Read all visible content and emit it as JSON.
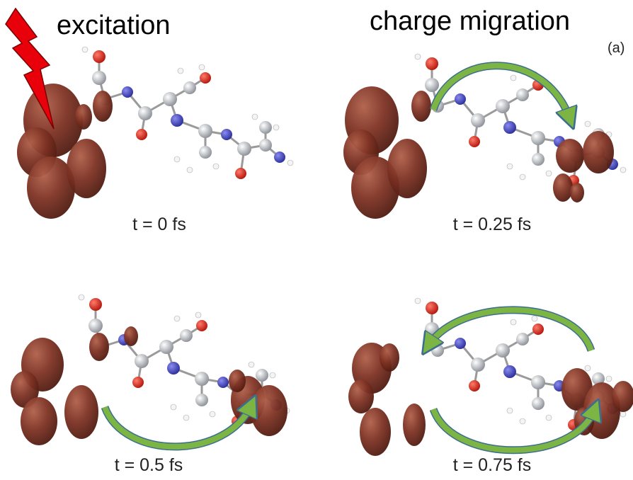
{
  "labels": {
    "excitation": "excitation",
    "charge_migration": "charge migration",
    "panel": "(a)"
  },
  "panels": [
    {
      "time": "t = 0 fs"
    },
    {
      "time": "t = 0.25 fs"
    },
    {
      "time": "t = 0.5 fs"
    },
    {
      "time": "t = 0.75 fs"
    }
  ]
}
